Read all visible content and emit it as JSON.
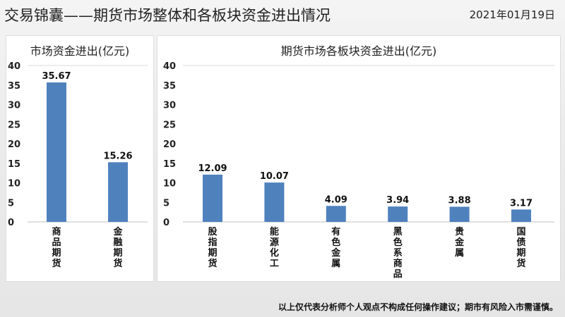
{
  "header": {
    "title": "交易锦囊——期货市场整体和各板块资金进出情况",
    "date": "2021年01月19日"
  },
  "footer": "以上仅代表分析师个人观点不构成任何操作建议；期市有风险入市需谨慎。",
  "colors": {
    "bar": "#4f81bd"
  },
  "chart_data": [
    {
      "type": "bar",
      "title": "市场资金进出(亿元)",
      "categories": [
        "商品期货",
        "金融期货"
      ],
      "values": [
        35.67,
        15.26
      ],
      "ylim": [
        0,
        40
      ],
      "yticks": [
        0,
        5,
        10,
        15,
        20,
        25,
        30,
        35,
        40
      ],
      "xlabel": "",
      "ylabel": ""
    },
    {
      "type": "bar",
      "title": "期货市场各板块资金进出(亿元)",
      "categories": [
        "股指期货",
        "能源化工",
        "有色金属",
        "黑色系商品",
        "贵金属",
        "国债期货"
      ],
      "values": [
        12.09,
        10.07,
        4.09,
        3.94,
        3.88,
        3.17
      ],
      "ylim": [
        0,
        40
      ],
      "yticks": [
        0,
        5,
        10,
        15,
        20,
        25,
        30,
        35,
        40
      ],
      "xlabel": "",
      "ylabel": ""
    }
  ]
}
